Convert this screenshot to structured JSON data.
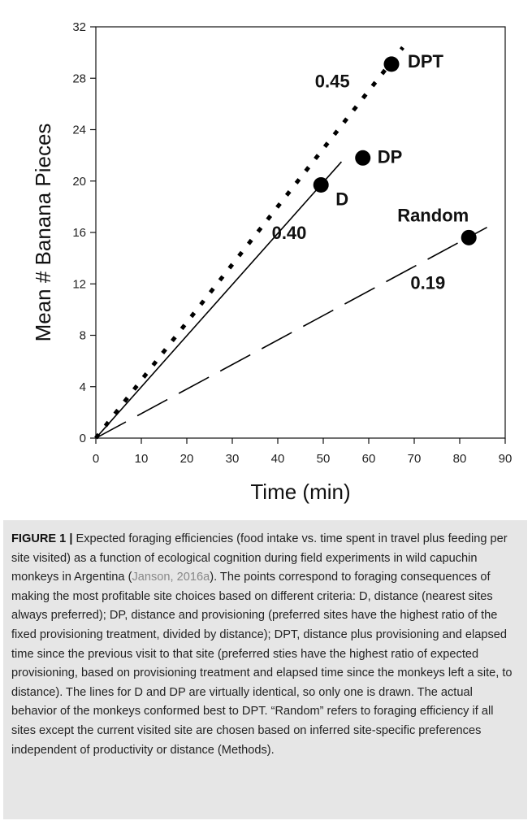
{
  "chart_data": {
    "type": "line",
    "xlabel": "Time (min)",
    "ylabel": "Mean # Banana Pieces",
    "xlim": [
      0,
      90
    ],
    "ylim": [
      0,
      32
    ],
    "xticks": [
      0,
      10,
      20,
      30,
      40,
      50,
      60,
      70,
      80,
      90
    ],
    "yticks": [
      0,
      4,
      8,
      12,
      16,
      20,
      24,
      28,
      32
    ],
    "grid": false,
    "series": [
      {
        "style": "dotted",
        "x": [
          0,
          67.5
        ],
        "y": [
          0,
          30.4
        ]
      },
      {
        "style": "solid",
        "x": [
          0,
          54
        ],
        "y": [
          0,
          21.5
        ]
      },
      {
        "style": "dashed",
        "x": [
          0,
          86
        ],
        "y": [
          0,
          16.4
        ]
      }
    ],
    "points": [
      {
        "label": "DPT",
        "x": 65,
        "y": 29.1
      },
      {
        "label": "DP",
        "x": 58.7,
        "y": 21.8
      },
      {
        "label": "D",
        "x": 49.5,
        "y": 19.7
      },
      {
        "label": "Random",
        "x": 82,
        "y": 15.6
      }
    ],
    "slope_labels": [
      {
        "text": "0.45",
        "x": 52,
        "y": 27.3
      },
      {
        "text": "0.40",
        "x": 42.5,
        "y": 15.5
      },
      {
        "text": "0.19",
        "x": 73,
        "y": 11.6
      }
    ]
  },
  "caption": {
    "label": "FIGURE 1 |",
    "text_before_cite": " Expected foraging efficiencies (food intake vs. time spent in travel plus feeding per site visited) as a function of ecological cognition during field experiments in wild capuchin monkeys in Argentina (",
    "citation": "Janson, 2016a",
    "text_after_cite": "). The points correspond to foraging consequences of making the most profitable site choices based on different criteria: D, distance (nearest sites always preferred); DP, distance and provisioning (preferred sites have the highest ratio of the fixed provisioning treatment, divided by distance); DPT, distance plus provisioning and elapsed time since the previous visit to that site (preferred sties have the highest ratio of expected provisioning, based on provisioning treatment and elapsed time since the monkeys left a site, to distance). The lines for D and DP are virtually identical, so only one is drawn. The actual behavior of the monkeys conformed best to DPT. “Random” refers to foraging efficiency if all sites except the current visited site are chosen based on inferred site-specific preferences independent of productivity or distance (Methods)."
  }
}
